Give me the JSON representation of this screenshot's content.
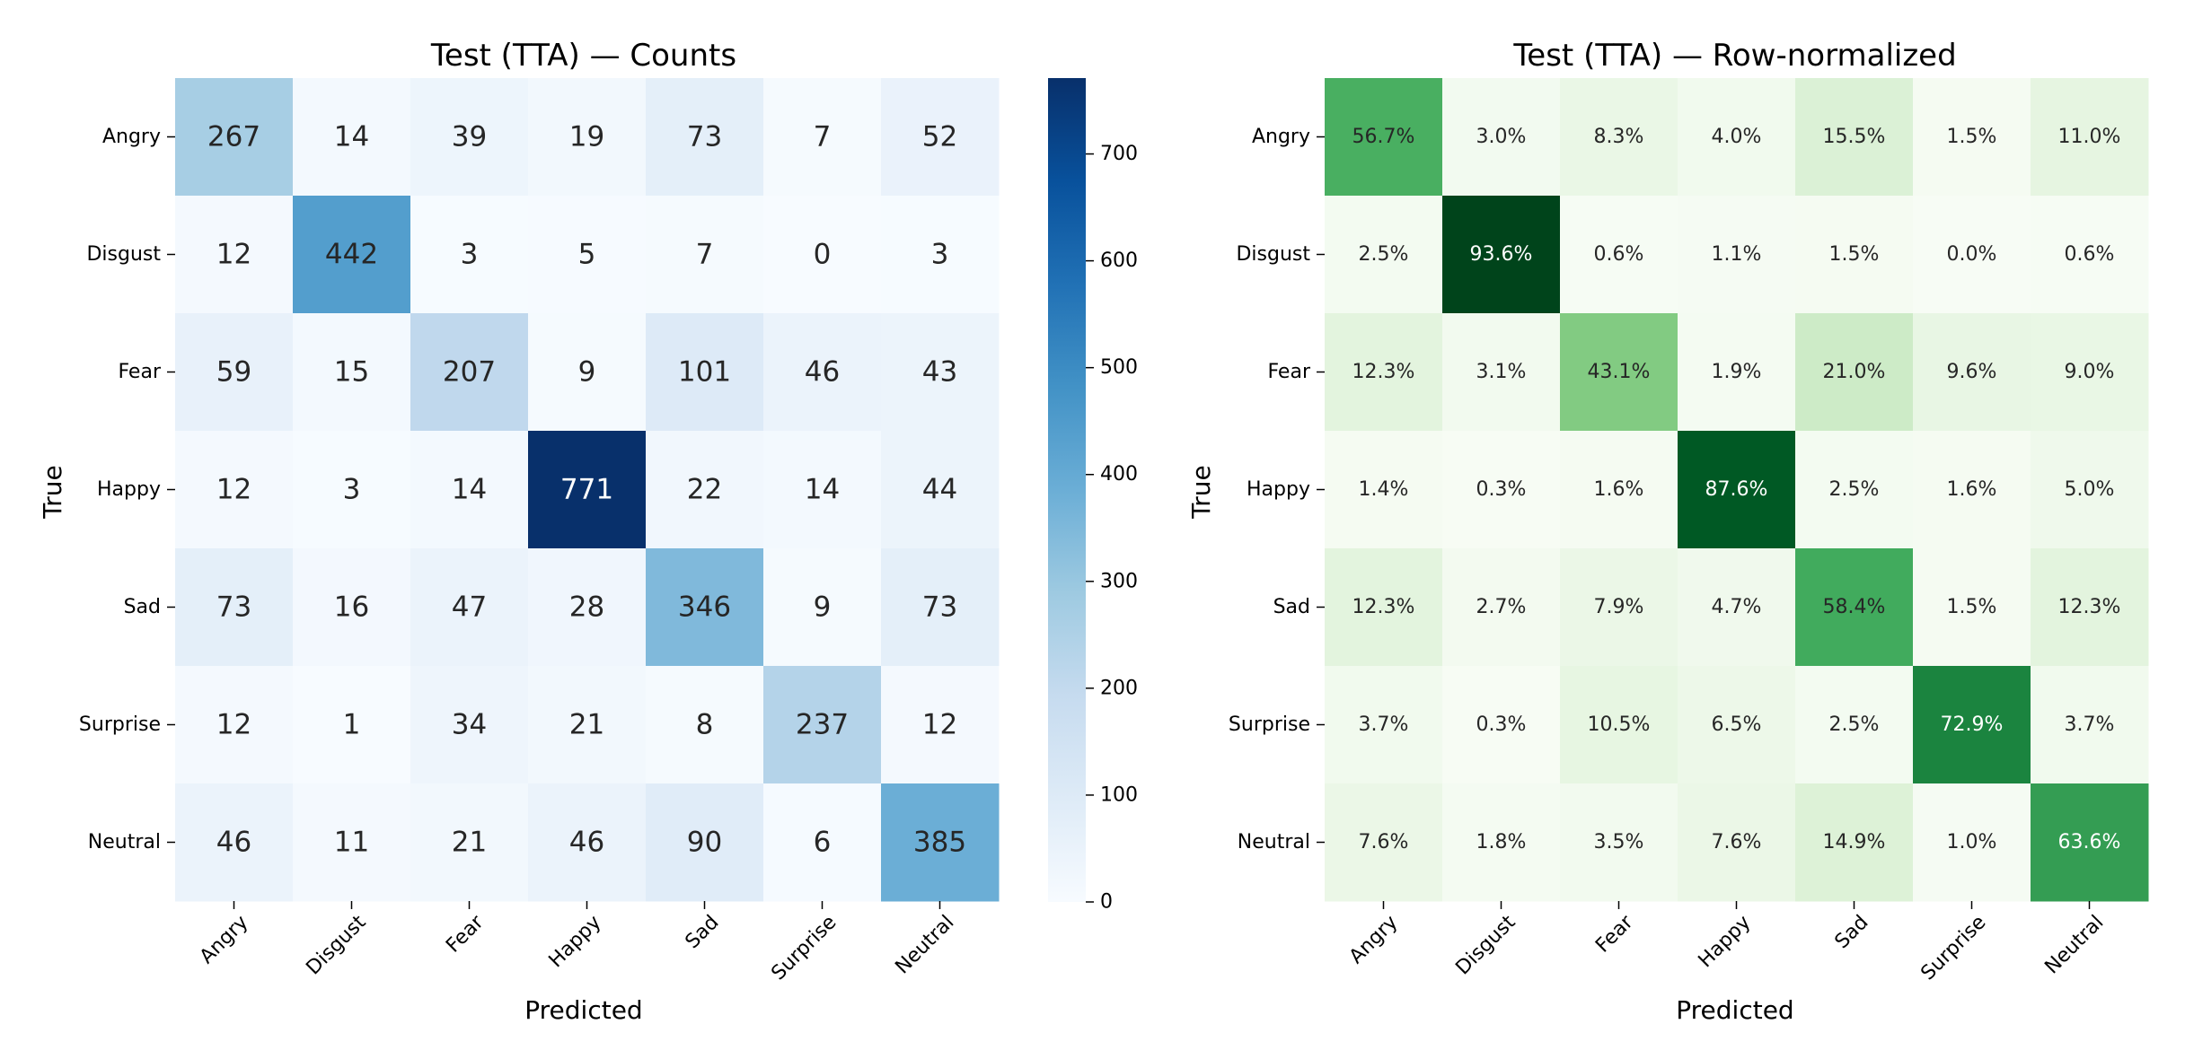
{
  "chart_data": [
    {
      "type": "heatmap",
      "title": "Test (TTA) — Counts",
      "xlabel": "Predicted",
      "ylabel": "True",
      "x_categories": [
        "Angry",
        "Disgust",
        "Fear",
        "Happy",
        "Sad",
        "Surprise",
        "Neutral"
      ],
      "y_categories": [
        "Angry",
        "Disgust",
        "Fear",
        "Happy",
        "Sad",
        "Surprise",
        "Neutral"
      ],
      "values": [
        [
          267,
          14,
          39,
          19,
          73,
          7,
          52
        ],
        [
          12,
          442,
          3,
          5,
          7,
          0,
          3
        ],
        [
          59,
          15,
          207,
          9,
          101,
          46,
          43
        ],
        [
          12,
          3,
          14,
          771,
          22,
          14,
          44
        ],
        [
          73,
          16,
          47,
          28,
          346,
          9,
          73
        ],
        [
          12,
          1,
          34,
          21,
          8,
          237,
          12
        ],
        [
          46,
          11,
          21,
          46,
          90,
          6,
          385
        ]
      ],
      "value_format": "integer",
      "colormap": "Blues",
      "color_range": [
        0,
        771
      ],
      "colorbar": {
        "ticks": [
          0,
          100,
          200,
          300,
          400,
          500,
          600,
          700
        ]
      },
      "colors": {
        "low": "#f7fbff",
        "high": "#08306b"
      }
    },
    {
      "type": "heatmap",
      "title": "Test (TTA) — Row-normalized",
      "xlabel": "Predicted",
      "ylabel": "True",
      "x_categories": [
        "Angry",
        "Disgust",
        "Fear",
        "Happy",
        "Sad",
        "Surprise",
        "Neutral"
      ],
      "y_categories": [
        "Angry",
        "Disgust",
        "Fear",
        "Happy",
        "Sad",
        "Surprise",
        "Neutral"
      ],
      "values": [
        [
          56.7,
          3.0,
          8.3,
          4.0,
          15.5,
          1.5,
          11.0
        ],
        [
          2.5,
          93.6,
          0.6,
          1.1,
          1.5,
          0.0,
          0.6
        ],
        [
          12.3,
          3.1,
          43.1,
          1.9,
          21.0,
          9.6,
          9.0
        ],
        [
          1.4,
          0.3,
          1.6,
          87.6,
          2.5,
          1.6,
          5.0
        ],
        [
          12.3,
          2.7,
          7.9,
          4.7,
          58.4,
          1.5,
          12.3
        ],
        [
          3.7,
          0.3,
          10.5,
          6.5,
          2.5,
          72.9,
          3.7
        ],
        [
          7.6,
          1.8,
          3.5,
          7.6,
          14.9,
          1.0,
          63.6
        ]
      ],
      "value_format": "percent",
      "colormap": "Greens",
      "color_range": [
        0,
        93.6
      ],
      "colors": {
        "low": "#f7fcf5",
        "high": "#00441b"
      }
    }
  ]
}
